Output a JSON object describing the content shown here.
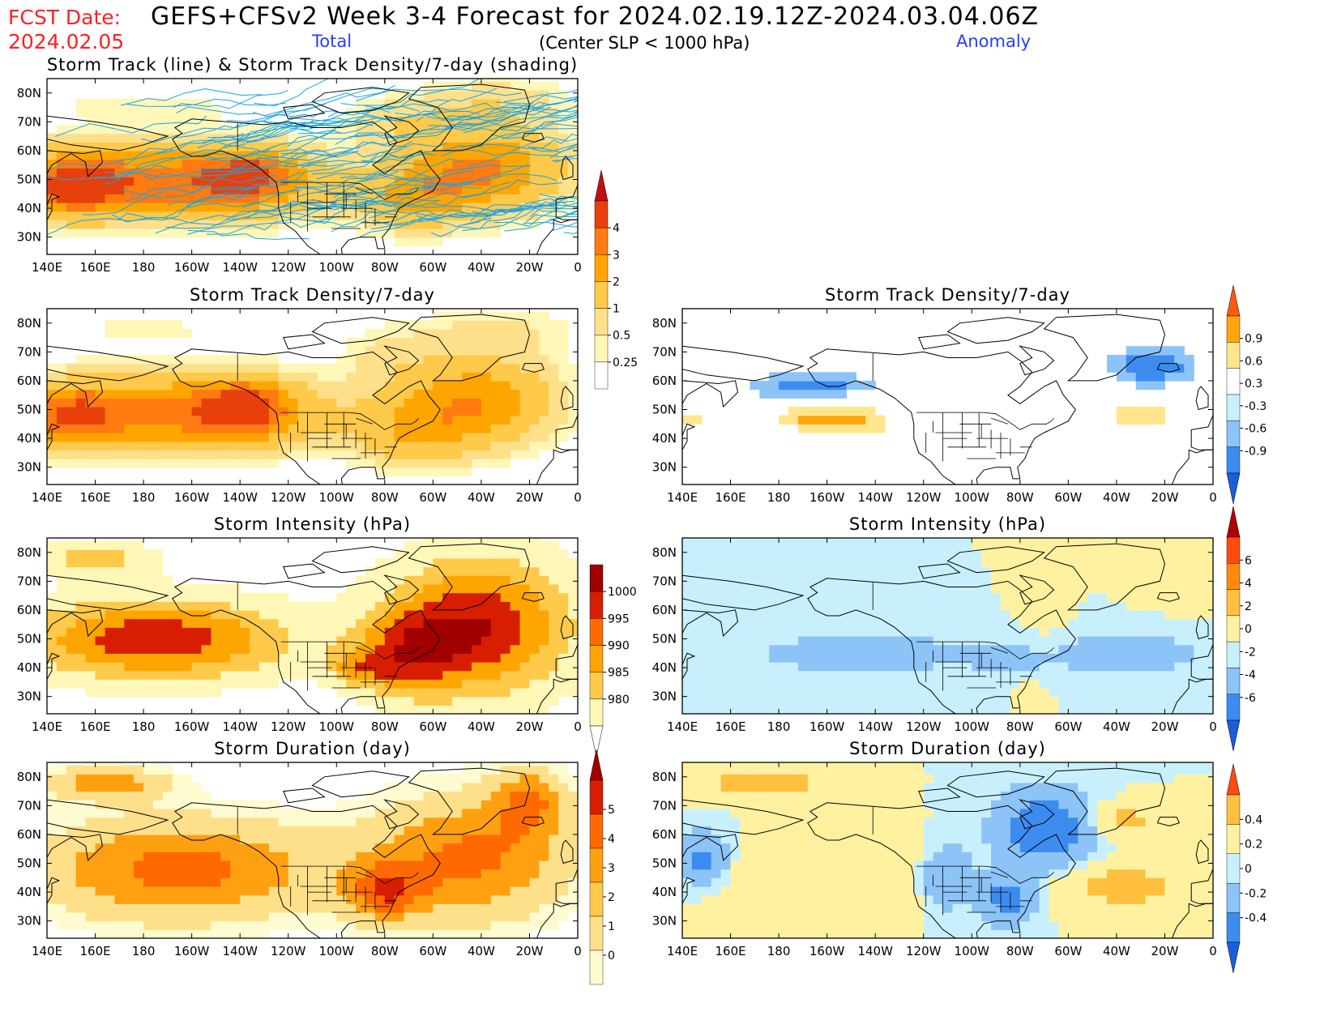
{
  "header": {
    "fcst_label": "FCST Date:",
    "fcst_date": "2024.02.05",
    "title": "GEFS+CFSv2 Week 3-4 Forecast for 2024.02.19.12Z-2024.03.04.06Z",
    "subtitle": "(Center SLP < 1000 hPa)",
    "total_label": "Total",
    "anomaly_label": "Anomaly"
  },
  "colors": {
    "header_red": "#ff2020",
    "header_blue": "#2a3cff",
    "track_line": "#1aa3e6",
    "land_line": "#000000"
  },
  "axes": {
    "x_ticks": [
      "140E",
      "160E",
      "180",
      "160W",
      "140W",
      "120W",
      "100W",
      "80W",
      "60W",
      "40W",
      "20W",
      "0"
    ],
    "y_ticks": [
      "30N",
      "40N",
      "50N",
      "60N",
      "70N",
      "80N"
    ],
    "x_range_deg": [
      140,
      360
    ],
    "y_range_deg": [
      24,
      85
    ]
  },
  "panels": [
    {
      "id": "track",
      "title": "Storm Track (line) & Storm Track Density/7-day (shading)",
      "col": "left",
      "row": 0,
      "scale": "track_total",
      "lines": true
    },
    {
      "id": "density_total",
      "title": "Storm Track Density/7-day",
      "col": "left",
      "row": 1,
      "scale": "track_total"
    },
    {
      "id": "density_anom",
      "title": "Storm Track Density/7-day",
      "col": "right",
      "row": 1,
      "scale": "density_anom"
    },
    {
      "id": "intensity_total",
      "title": "Storm Intensity (hPa)",
      "col": "left",
      "row": 2,
      "scale": "intensity_total"
    },
    {
      "id": "intensity_anom",
      "title": "Storm Intensity (hPa)",
      "col": "right",
      "row": 2,
      "scale": "intensity_anom"
    },
    {
      "id": "duration_total",
      "title": "Storm Duration (day)",
      "col": "left",
      "row": 3,
      "scale": "duration_total"
    },
    {
      "id": "duration_anom",
      "title": "Storm Duration (day)",
      "col": "right",
      "row": 3,
      "scale": "duration_anom"
    }
  ],
  "colorbars": {
    "track_total": {
      "labels": [
        "0.25",
        "0.5",
        "1",
        "2",
        "3",
        "4"
      ],
      "colors": [
        "#ffffff",
        "#fff7b8",
        "#ffe08a",
        "#ffc94a",
        "#ffa500",
        "#ff7a10",
        "#e8400c",
        "#c01010"
      ],
      "arrow_top": true,
      "arrow_bottom": false
    },
    "density_anom": {
      "labels": [
        "-0.9",
        "-0.6",
        "-0.3",
        "0.3",
        "0.6",
        "0.9"
      ],
      "colors": [
        "#1c5ed8",
        "#3c8cf0",
        "#8cc4f8",
        "#c8f0fc",
        "#ffffff",
        "#ffe68c",
        "#ffa510",
        "#ff5a10"
      ],
      "arrow_top": true,
      "arrow_bottom": true
    },
    "intensity_total": {
      "labels": [
        "1000",
        "995",
        "990",
        "985",
        "980"
      ],
      "colors": [
        "#ffffff",
        "#fff7b8",
        "#ffc94a",
        "#ffa500",
        "#ff6a00",
        "#d81e00",
        "#a00000"
      ],
      "arrow_top": false,
      "arrow_bottom": true
    },
    "intensity_anom": {
      "labels": [
        "-6",
        "-4",
        "-2",
        "0",
        "2",
        "4",
        "6"
      ],
      "colors": [
        "#1c5ed8",
        "#3c8cf0",
        "#8cc4f8",
        "#c8f0fc",
        "#fff1a0",
        "#ffc040",
        "#ff8a10",
        "#ff4a10",
        "#b00000"
      ],
      "arrow_top": true,
      "arrow_bottom": true
    },
    "duration_total": {
      "labels": [
        "0",
        "1",
        "2",
        "3",
        "4",
        "5"
      ],
      "colors": [
        "#fffbd0",
        "#ffe08a",
        "#ffc94a",
        "#ffa010",
        "#ff6a00",
        "#d81e00",
        "#a00000"
      ],
      "arrow_top": true,
      "arrow_bottom": false
    },
    "duration_anom": {
      "labels": [
        "-0.4",
        "-0.2",
        "0",
        "0.2",
        "0.4"
      ],
      "colors": [
        "#1c5ed8",
        "#3c8cf0",
        "#8cc4f8",
        "#c8f0fc",
        "#fff1a0",
        "#ffc040",
        "#ff4a10"
      ],
      "arrow_top": true,
      "arrow_bottom": true
    }
  },
  "chart_data": [
    {
      "type": "heatmap",
      "panel": "track",
      "title": "Storm Track (line) & Storm Track Density/7-day (shading)",
      "field": "storm track density per 7 days",
      "blobs": [
        {
          "lon": 190,
          "lat": 49,
          "rlon": 58,
          "rlat": 12,
          "v": 3.8
        },
        {
          "lon": 150,
          "lat": 48,
          "rlon": 18,
          "rlat": 10,
          "v": 3.0
        },
        {
          "lon": 225,
          "lat": 52,
          "rlon": 18,
          "rlat": 9,
          "v": 2.5
        },
        {
          "lon": 320,
          "lat": 54,
          "rlon": 32,
          "rlat": 14,
          "v": 3.2
        },
        {
          "lon": 292,
          "lat": 43,
          "rlon": 22,
          "rlat": 10,
          "v": 1.8
        },
        {
          "lon": 325,
          "lat": 77,
          "rlon": 30,
          "rlat": 8,
          "v": 0.8
        },
        {
          "lon": 285,
          "lat": 70,
          "rlon": 22,
          "rlat": 8,
          "v": 0.7
        },
        {
          "lon": 180,
          "lat": 75,
          "rlon": 40,
          "rlat": 5,
          "v": 0.4
        }
      ]
    },
    {
      "type": "heatmap",
      "panel": "density_total",
      "title": "Storm Track Density/7-day",
      "field": "total density",
      "blobs": [
        {
          "lon": 195,
          "lat": 49,
          "rlon": 55,
          "rlat": 12,
          "v": 3.6
        },
        {
          "lon": 150,
          "lat": 48,
          "rlon": 18,
          "rlat": 10,
          "v": 2.8
        },
        {
          "lon": 222,
          "lat": 51,
          "rlon": 16,
          "rlat": 9,
          "v": 3.2
        },
        {
          "lon": 318,
          "lat": 53,
          "rlon": 30,
          "rlat": 14,
          "v": 2.9
        },
        {
          "lon": 292,
          "lat": 42,
          "rlon": 24,
          "rlat": 11,
          "v": 1.6
        },
        {
          "lon": 325,
          "lat": 77,
          "rlon": 32,
          "rlat": 8,
          "v": 0.6
        },
        {
          "lon": 282,
          "lat": 68,
          "rlon": 20,
          "rlat": 10,
          "v": 0.55
        },
        {
          "lon": 180,
          "lat": 78,
          "rlon": 45,
          "rlat": 5,
          "v": 0.3
        }
      ]
    },
    {
      "type": "heatmap",
      "panel": "density_anom",
      "title": "Storm Track Density/7-day",
      "field": "density anomaly",
      "blobs": [
        {
          "lon": 210,
          "lat": 46,
          "rlon": 22,
          "rlat": 7,
          "v": 1.0
        },
        {
          "lon": 185,
          "lat": 47,
          "rlon": 12,
          "rlat": 4,
          "v": 0.6
        },
        {
          "lon": 145,
          "lat": 46,
          "rlon": 8,
          "rlat": 6,
          "v": 0.7
        },
        {
          "lon": 330,
          "lat": 48,
          "rlon": 22,
          "rlat": 6,
          "v": 0.8
        },
        {
          "lon": 298,
          "lat": 42,
          "rlon": 12,
          "rlat": 5,
          "v": 0.5
        },
        {
          "lon": 270,
          "lat": 41,
          "rlon": 10,
          "rlat": 8,
          "v": 0.35
        },
        {
          "lon": 195,
          "lat": 58,
          "rlon": 26,
          "rlat": 5,
          "v": -0.8
        },
        {
          "lon": 335,
          "lat": 65,
          "rlon": 18,
          "rlat": 7,
          "v": -0.9
        }
      ]
    },
    {
      "type": "heatmap",
      "panel": "intensity_total",
      "title": "Storm Intensity (hPa)",
      "field": "central SLP",
      "baseline": 1003,
      "blobs": [
        {
          "lon": 185,
          "lat": 50,
          "rlon": 55,
          "rlat": 14,
          "v": -22
        },
        {
          "lon": 320,
          "lat": 55,
          "rlon": 38,
          "rlat": 24,
          "v": -22
        },
        {
          "lon": 290,
          "lat": 45,
          "rlon": 22,
          "rlat": 15,
          "v": -14
        },
        {
          "lon": 160,
          "lat": 78,
          "rlon": 25,
          "rlat": 6,
          "v": -10
        },
        {
          "lon": 270,
          "lat": 40,
          "rlon": 14,
          "rlat": 6,
          "v": -10
        }
      ]
    },
    {
      "type": "heatmap",
      "panel": "intensity_anom",
      "title": "Storm Intensity (hPa)",
      "field": "intensity anomaly",
      "blobs": [
        {
          "lon": 215,
          "lat": 45,
          "rlon": 60,
          "rlat": 10,
          "v": -3.0
        },
        {
          "lon": 325,
          "lat": 45,
          "rlon": 35,
          "rlat": 9,
          "v": -3.5
        },
        {
          "lon": 275,
          "lat": 42,
          "rlon": 15,
          "rlat": 6,
          "v": -1.5
        },
        {
          "lon": 290,
          "lat": 58,
          "rlon": 10,
          "rlat": 10,
          "v": 1.5
        },
        {
          "lon": 345,
          "lat": 70,
          "rlon": 15,
          "rlat": 10,
          "v": 1.5
        },
        {
          "lon": 285,
          "lat": 33,
          "rlon": 8,
          "rlat": 5,
          "v": 1.0
        }
      ]
    },
    {
      "type": "heatmap",
      "panel": "duration_total",
      "title": "Storm Duration (day)",
      "field": "storm duration",
      "blobs": [
        {
          "lon": 195,
          "lat": 48,
          "rlon": 60,
          "rlat": 18,
          "v": 3.4
        },
        {
          "lon": 315,
          "lat": 52,
          "rlon": 42,
          "rlat": 22,
          "v": 3.2
        },
        {
          "lon": 280,
          "lat": 40,
          "rlon": 16,
          "rlat": 10,
          "v": 2.8
        },
        {
          "lon": 165,
          "lat": 78,
          "rlon": 25,
          "rlat": 6,
          "v": 2.5
        },
        {
          "lon": 340,
          "lat": 72,
          "rlon": 15,
          "rlat": 12,
          "v": 2.5
        }
      ]
    },
    {
      "type": "heatmap",
      "panel": "duration_anom",
      "title": "Storm Duration (day)",
      "field": "duration anomaly",
      "blobs": [
        {
          "lon": 175,
          "lat": 78,
          "rlon": 22,
          "rlat": 4,
          "v": 0.45
        },
        {
          "lon": 325,
          "lat": 42,
          "rlon": 22,
          "rlat": 7,
          "v": 0.35
        },
        {
          "lon": 325,
          "lat": 65,
          "rlon": 12,
          "rlat": 5,
          "v": 0.3
        },
        {
          "lon": 200,
          "lat": 45,
          "rlon": 35,
          "rlat": 12,
          "v": 0.12
        },
        {
          "lon": 290,
          "lat": 62,
          "rlon": 18,
          "rlat": 12,
          "v": -0.35
        },
        {
          "lon": 275,
          "lat": 38,
          "rlon": 10,
          "rlat": 8,
          "v": -0.3
        },
        {
          "lon": 148,
          "lat": 52,
          "rlon": 10,
          "rlat": 8,
          "v": -0.25
        },
        {
          "lon": 250,
          "lat": 45,
          "rlon": 10,
          "rlat": 10,
          "v": -0.18
        }
      ]
    }
  ]
}
